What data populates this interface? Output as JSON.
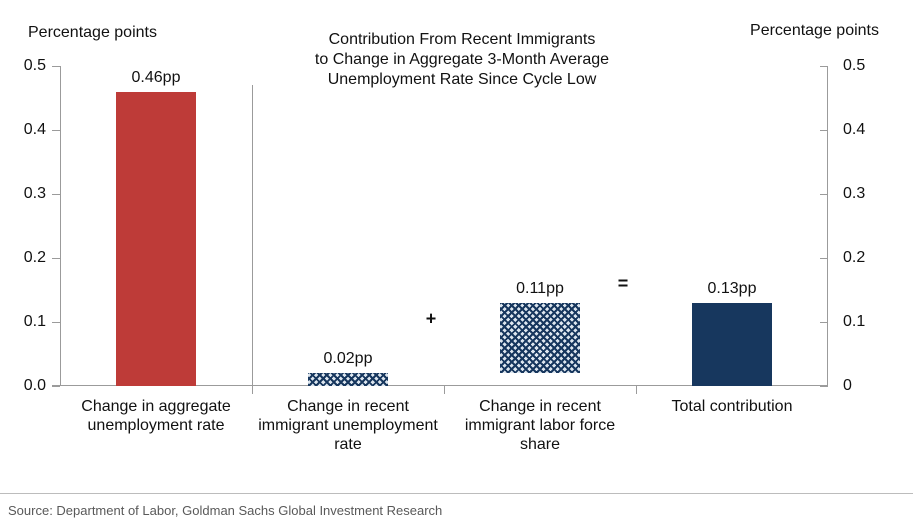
{
  "chart_data": {
    "type": "bar",
    "title": "Contribution From Recent Immigrants\nto Change in Aggregate 3-Month Average\nUnemployment Rate Since Cycle Low",
    "left_axis_title": "Percentage points",
    "right_axis_title": "Percentage points",
    "ylim": [
      0,
      0.5
    ],
    "y_ticks_left": [
      "0.5",
      "0.4",
      "0.3",
      "0.2",
      "0.1",
      "0.0"
    ],
    "y_ticks_right": [
      "0.5",
      "0.4",
      "0.3",
      "0.2",
      "0.1",
      "0"
    ],
    "grid": false,
    "categories": [
      "Change in aggregate unemployment rate",
      "Change in recent immigrant unemployment rate",
      "Change in recent immigrant labor force share",
      "Total contribution"
    ],
    "bars": [
      {
        "data_label": "0.46pp",
        "value": 0.46,
        "base": 0,
        "style": "solid-red",
        "color": "#be3b38"
      },
      {
        "data_label": "0.02pp",
        "value": 0.02,
        "base": 0,
        "style": "pattern-navy",
        "color": "#17375e"
      },
      {
        "data_label": "0.11pp",
        "value": 0.11,
        "base": 0.02,
        "style": "pattern-navy",
        "color": "#17375e"
      },
      {
        "data_label": "0.13pp",
        "value": 0.13,
        "base": 0,
        "style": "solid-navy",
        "color": "#17375e"
      }
    ],
    "operators": [
      {
        "symbol": "+",
        "after_category": 2,
        "at_value": 0.105
      },
      {
        "symbol": "=",
        "after_category": 3,
        "at_value": 0.16
      }
    ],
    "divider_after_category": 1,
    "colors": {
      "red": "#be3b38",
      "navy": "#17375e",
      "axis_line": "#9b9b9b",
      "source_text": "#595959"
    }
  },
  "source": "Source: Department of Labor, Goldman Sachs Global Investment Research"
}
